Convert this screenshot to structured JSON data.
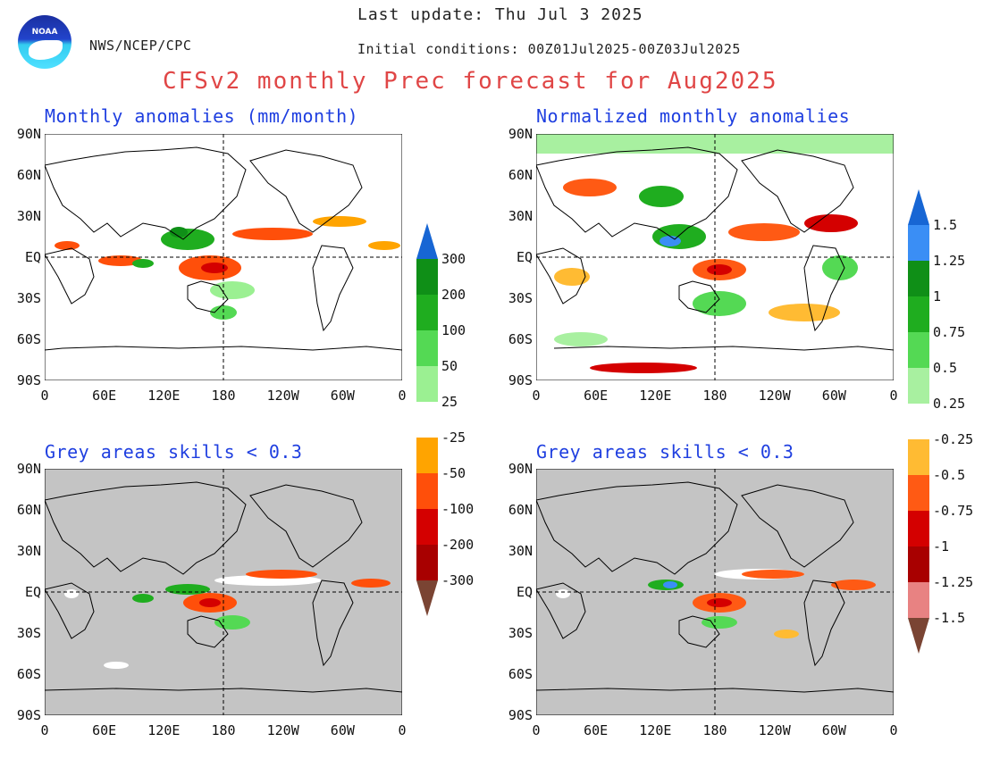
{
  "header": {
    "last_update": "Last update: Thu Jul 3 2025",
    "agency": "NWS/NCEP/CPC",
    "initial_conditions": "Initial conditions: 00Z01Jul2025-00Z03Jul2025",
    "title": "CFSv2 monthly Prec forecast for Aug2025",
    "logo_text": "NOAA"
  },
  "panels": {
    "top_left_title": "Monthly anomalies (mm/month)",
    "top_right_title": "Normalized monthly anomalies",
    "bottom_left_title": "Grey areas skills < 0.3",
    "bottom_right_title": "Grey areas skills < 0.3"
  },
  "axes": {
    "lat_labels": [
      "90N",
      "60N",
      "30N",
      "EQ",
      "30S",
      "60S",
      "90S"
    ],
    "lon_labels": [
      "0",
      "60E",
      "120E",
      "180",
      "120W",
      "60W",
      "0"
    ]
  },
  "colorbar_left": {
    "labels": [
      "300",
      "200",
      "100",
      "50",
      "25",
      "-25",
      "-50",
      "-100",
      "-200",
      "-300"
    ]
  },
  "colorbar_right": {
    "labels": [
      "1.5",
      "1.25",
      "1",
      "0.75",
      "0.5",
      "0.25",
      "-0.25",
      "-0.5",
      "-0.75",
      "-1",
      "-1.25",
      "-1.5"
    ]
  },
  "colors": {
    "title_red": "#e04646",
    "panel_title_blue": "#1f3fe0",
    "grey_mask": "#c4c4c4",
    "cb_left": [
      "#1766d4",
      "#0f8f17",
      "#1fad1f",
      "#54d954",
      "#9bf092",
      "#ffffff",
      "#ffa400",
      "#ff4f0a",
      "#d40000",
      "#a80000",
      "#7a4433"
    ],
    "cb_right": [
      "#1766d4",
      "#3a8ef5",
      "#0f8f17",
      "#1fad1f",
      "#54d954",
      "#a8f0a0",
      "#ffffff",
      "#ffbb33",
      "#ff5a14",
      "#d40000",
      "#a80000",
      "#e88282",
      "#7a4433"
    ]
  }
}
